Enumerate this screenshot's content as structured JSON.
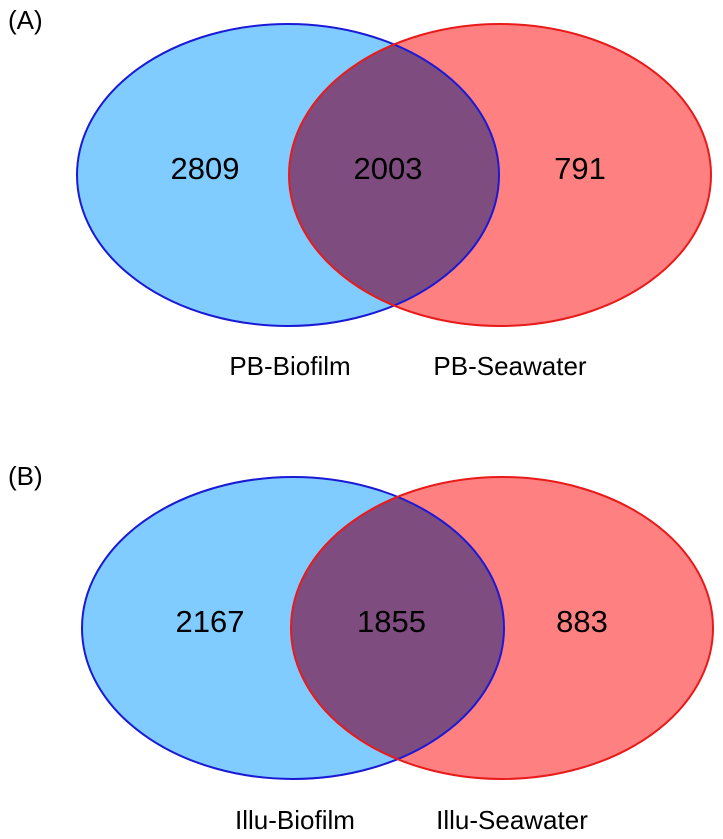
{
  "panels": [
    {
      "label": "(A)",
      "sets": [
        {
          "name": "PB-Biofilm",
          "only": 2809
        },
        {
          "name": "PB-Seawater",
          "only": 791
        }
      ],
      "intersection": 2003
    },
    {
      "label": "(B)",
      "sets": [
        {
          "name": "Illu-Biofilm",
          "only": 2167
        },
        {
          "name": "Illu-Seawater",
          "only": 883
        }
      ],
      "intersection": 1855
    }
  ]
}
